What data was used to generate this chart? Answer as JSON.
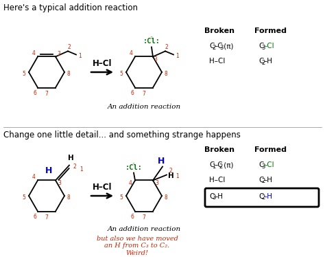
{
  "title1": "Here's a typical addition reaction",
  "title2": "Change one little detail... and something strange happens",
  "reagent": "H–Cl",
  "caption1": "An addition reaction",
  "caption2": "An addition reaction",
  "caption3": "but also we have moved\nan H from C₃ to C₂.\nWeird!",
  "broken_header": "Broken",
  "formed_header": "Formed",
  "bg_color": "#ffffff",
  "text_color": "#000000",
  "red_color": "#cc2200",
  "green_color": "#007700",
  "blue_color": "#0000cc"
}
